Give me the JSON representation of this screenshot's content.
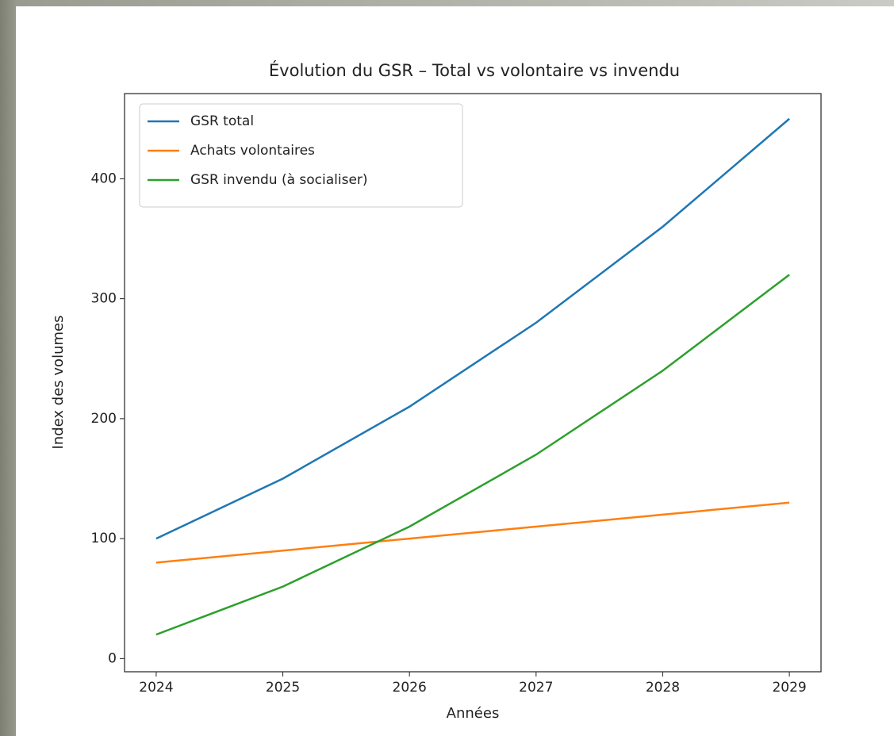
{
  "chart_data": {
    "type": "line",
    "title": "Évolution du GSR – Total vs volontaire vs invendu",
    "x_label": "Années",
    "y_label": "Index des volumes",
    "x": [
      2024,
      2025,
      2026,
      2027,
      2028,
      2029
    ],
    "series": [
      {
        "name": "GSR total",
        "color": "#1f77b4",
        "values": [
          100,
          150,
          210,
          280,
          360,
          450
        ]
      },
      {
        "name": "Achats volontaires",
        "color": "#ff7f0e",
        "values": [
          80,
          90,
          100,
          110,
          120,
          130
        ]
      },
      {
        "name": "GSR invendu (à socialiser)",
        "color": "#2ca02c",
        "values": [
          20,
          60,
          110,
          170,
          240,
          320
        ]
      }
    ],
    "xlim": [
      2023.75,
      2029.25
    ],
    "xticks": [
      2024,
      2025,
      2026,
      2027,
      2028,
      2029
    ],
    "ylim": [
      -11,
      471
    ],
    "yticks": [
      0,
      100,
      200,
      300,
      400
    ],
    "grid": false,
    "legend": "upper left"
  }
}
